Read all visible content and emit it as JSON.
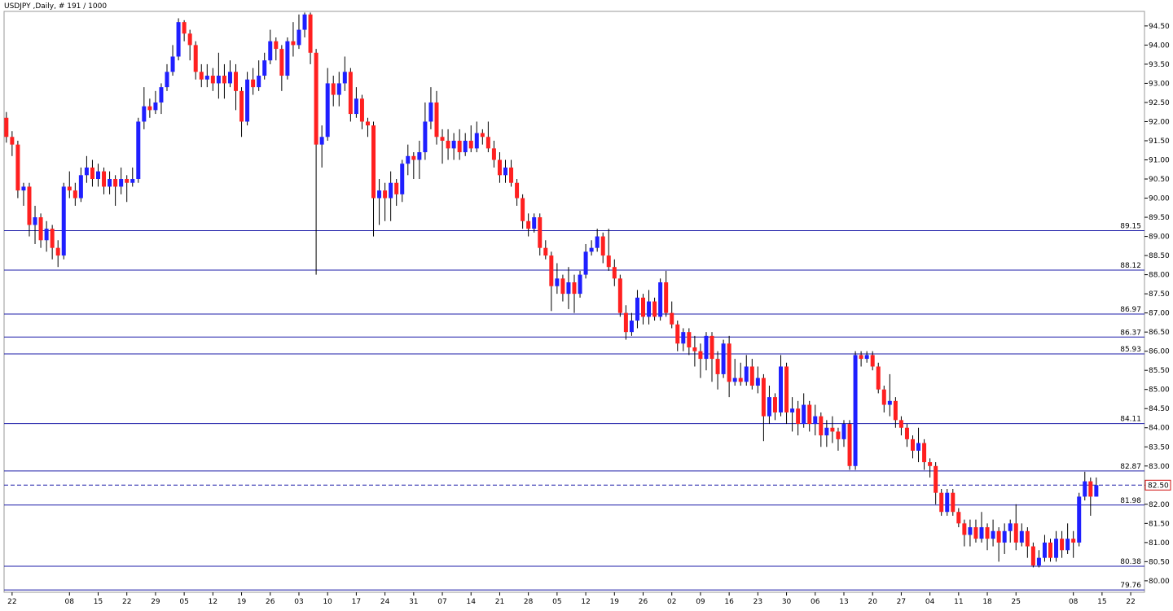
{
  "chart_data": {
    "type": "candlestick",
    "title": "USDJPY ,Daily, # 191 / 1000",
    "up_color": "#1f1fff",
    "down_color": "#ff2020",
    "wick_color": "#000000",
    "level_color": "#1c1ca8",
    "xlim": [
      -0.4,
      198.4
    ],
    "ylim": [
      79.7,
      94.88
    ],
    "xticks": [
      {
        "value": 1,
        "label": "22"
      },
      {
        "value": 11,
        "label": "08"
      },
      {
        "value": 16,
        "label": "15"
      },
      {
        "value": 21,
        "label": "22"
      },
      {
        "value": 26,
        "label": "29"
      },
      {
        "value": 31,
        "label": "05"
      },
      {
        "value": 36,
        "label": "12"
      },
      {
        "value": 41,
        "label": "19"
      },
      {
        "value": 46,
        "label": "26"
      },
      {
        "value": 51,
        "label": "03"
      },
      {
        "value": 56,
        "label": "10"
      },
      {
        "value": 61,
        "label": "17"
      },
      {
        "value": 66,
        "label": "24"
      },
      {
        "value": 71,
        "label": "31"
      },
      {
        "value": 76,
        "label": "07"
      },
      {
        "value": 81,
        "label": "14"
      },
      {
        "value": 86,
        "label": "21"
      },
      {
        "value": 91,
        "label": "28"
      },
      {
        "value": 96,
        "label": "05"
      },
      {
        "value": 101,
        "label": "12"
      },
      {
        "value": 106,
        "label": "19"
      },
      {
        "value": 111,
        "label": "26"
      },
      {
        "value": 116,
        "label": "02"
      },
      {
        "value": 121,
        "label": "09"
      },
      {
        "value": 126,
        "label": "16"
      },
      {
        "value": 131,
        "label": "23"
      },
      {
        "value": 136,
        "label": "30"
      },
      {
        "value": 141,
        "label": "06"
      },
      {
        "value": 146,
        "label": "13"
      },
      {
        "value": 151,
        "label": "20"
      },
      {
        "value": 156,
        "label": "27"
      },
      {
        "value": 161,
        "label": "04"
      },
      {
        "value": 166,
        "label": "11"
      },
      {
        "value": 171,
        "label": "18"
      },
      {
        "value": 176,
        "label": "25"
      },
      {
        "value": 186,
        "label": "08"
      },
      {
        "value": 191,
        "label": "15"
      },
      {
        "value": 196,
        "label": "22"
      }
    ],
    "yticks": [
      {
        "value": 94.5,
        "label": "94.50"
      },
      {
        "value": 94,
        "label": "94.00"
      },
      {
        "value": 93.5,
        "label": "93.50"
      },
      {
        "value": 93,
        "label": "93.00"
      },
      {
        "value": 92.5,
        "label": "92.50"
      },
      {
        "value": 92,
        "label": "92.00"
      },
      {
        "value": 91.5,
        "label": "91.50"
      },
      {
        "value": 91,
        "label": "91.00"
      },
      {
        "value": 90.5,
        "label": "90.50"
      },
      {
        "value": 90,
        "label": "90.00"
      },
      {
        "value": 89.5,
        "label": "89.50"
      },
      {
        "value": 89,
        "label": "89.00"
      },
      {
        "value": 88.5,
        "label": "88.50"
      },
      {
        "value": 88,
        "label": "88.00"
      },
      {
        "value": 87.5,
        "label": "87.50"
      },
      {
        "value": 87,
        "label": "87.00"
      },
      {
        "value": 86.5,
        "label": "86.50"
      },
      {
        "value": 86,
        "label": "86.00"
      },
      {
        "value": 85.5,
        "label": "85.50"
      },
      {
        "value": 85,
        "label": "85.00"
      },
      {
        "value": 84.5,
        "label": "84.50"
      },
      {
        "value": 84,
        "label": "84.00"
      },
      {
        "value": 83.5,
        "label": "83.50"
      },
      {
        "value": 83,
        "label": "83.00"
      },
      {
        "value": 82.5,
        "label": "82.50"
      },
      {
        "value": 82,
        "label": "82.00"
      },
      {
        "value": 81.5,
        "label": "81.50"
      },
      {
        "value": 81,
        "label": "81.00"
      },
      {
        "value": 80.5,
        "label": "80.50"
      },
      {
        "value": 80,
        "label": "80.00"
      }
    ],
    "levels": [
      89.15,
      88.12,
      86.97,
      86.37,
      85.93,
      84.11,
      82.87,
      81.98,
      80.38,
      79.76
    ],
    "current": {
      "value": 82.5,
      "label": "82.50"
    },
    "open": [
      92.1,
      91.6,
      91.4,
      90.2,
      90.3,
      89.3,
      89.5,
      88.9,
      89.2,
      88.7,
      88.5,
      90.3,
      90.2,
      90,
      90.6,
      90.8,
      90.5,
      90.7,
      90.3,
      90.5,
      90.3,
      90.5,
      90.4,
      90.5,
      92,
      92.4,
      92.3,
      92.5,
      92.9,
      93.3,
      93.7,
      94.6,
      94.3,
      94,
      93.3,
      93.1,
      93.2,
      93,
      93.2,
      93,
      93.3,
      92.8,
      92,
      93.1,
      92.9,
      93.2,
      93.6,
      94.1,
      93.9,
      93.2,
      94.1,
      94,
      94.4,
      94.8,
      93.8,
      91.4,
      91.6,
      93,
      92.7,
      93,
      93.3,
      92.2,
      92.6,
      92,
      91.9,
      90,
      90.2,
      90,
      90.4,
      90.1,
      90.9,
      91.1,
      91,
      91.2,
      92,
      92.5,
      91.6,
      91.5,
      91.3,
      91.5,
      91.2,
      91.5,
      91.3,
      91.7,
      91.6,
      91.3,
      91,
      90.6,
      90.8,
      90.4,
      90,
      89.4,
      89.2,
      89.5,
      88.7,
      88.5,
      87.7,
      87.9,
      87.5,
      87.8,
      87.5,
      88,
      88.6,
      88.7,
      89,
      88.5,
      88.2,
      87.9,
      87,
      86.5,
      86.8,
      87.4,
      86.9,
      87.3,
      86.9,
      87.8,
      87,
      86.7,
      86.2,
      86.5,
      86.1,
      86,
      85.8,
      86.4,
      85.8,
      85.4,
      86.2,
      85.2,
      85.3,
      85.2,
      85.6,
      85.1,
      85.3,
      84.3,
      84.8,
      84.4,
      85.6,
      84.4,
      84.5,
      84.1,
      84.6,
      84.1,
      84.3,
      83.8,
      84,
      83.9,
      83.7,
      84.1,
      83,
      85.9,
      85.8,
      85.9,
      85.6,
      85,
      84.6,
      84.7,
      84.2,
      84,
      83.7,
      83.4,
      83.6,
      83.1,
      83,
      82.3,
      81.8,
      82.3,
      81.8,
      81.5,
      81.2,
      81.4,
      81.1,
      81.4,
      81.1,
      81.3,
      81,
      81.3,
      81.5,
      81,
      81.3,
      80.9,
      80.4,
      80.6,
      81,
      80.6,
      81.1,
      80.8,
      81.1,
      81,
      82.2,
      82.6,
      82.2
    ],
    "high": [
      92.25,
      91.75,
      91.5,
      90.4,
      90.4,
      89.8,
      89.6,
      89.4,
      89.3,
      88.9,
      90.4,
      90.7,
      90.4,
      90.8,
      91.1,
      91,
      90.9,
      90.8,
      90.7,
      90.6,
      90.8,
      90.6,
      90.8,
      92.1,
      92.9,
      92.6,
      92.8,
      93,
      93.5,
      94,
      94.7,
      94.65,
      94.4,
      94.1,
      93.5,
      93.5,
      93.4,
      93.8,
      93.5,
      93.6,
      93.5,
      92.9,
      93.3,
      93.4,
      93.6,
      93.8,
      94.4,
      94.2,
      94,
      94.2,
      94.6,
      94.8,
      94.85,
      94.85,
      93.9,
      91.9,
      93.4,
      93.2,
      93.3,
      93.7,
      93.4,
      92.9,
      92.7,
      92.1,
      92,
      90.5,
      90.4,
      90.7,
      90.5,
      91,
      91.4,
      91.2,
      91.5,
      92.5,
      92.9,
      92.8,
      91.8,
      91.8,
      91.7,
      91.8,
      91.7,
      91.9,
      92,
      91.8,
      92,
      91.5,
      91.2,
      91,
      91,
      90.5,
      90.1,
      89.6,
      89.6,
      89.6,
      88.9,
      88.6,
      88.3,
      88,
      88.2,
      88,
      88.1,
      88.8,
      88.9,
      89.2,
      89.1,
      89.2,
      88.4,
      88,
      87.2,
      87,
      87.6,
      87.5,
      87.6,
      87.4,
      87.9,
      88.1,
      87.3,
      86.8,
      86.6,
      86.6,
      86.4,
      86.2,
      86.5,
      86.5,
      86,
      86.3,
      86.4,
      85.8,
      85.7,
      85.9,
      85.8,
      85.6,
      85.4,
      85.1,
      84.9,
      85.9,
      85.7,
      84.8,
      84.7,
      84.9,
      84.7,
      84.6,
      84.4,
      84.2,
      84.3,
      84,
      84.2,
      84.2,
      86,
      86,
      86,
      86,
      85.7,
      85.1,
      85.4,
      84.8,
      84.3,
      84.1,
      83.8,
      84,
      83.7,
      83.2,
      83.1,
      82.4,
      82.4,
      82.4,
      81.9,
      81.6,
      81.6,
      81.6,
      81.8,
      81.5,
      81.6,
      81.4,
      81.5,
      81.6,
      82,
      81.5,
      81.4,
      81,
      80.8,
      81.2,
      81.1,
      81.3,
      81.3,
      81.5,
      81.3,
      82.3,
      82.85,
      82.7,
      82.7
    ],
    "low": [
      91.45,
      91.1,
      90,
      89.8,
      89,
      88.8,
      88.7,
      88.6,
      88.4,
      88.2,
      88.4,
      90,
      89.8,
      89.9,
      90.4,
      90.3,
      90.3,
      90.1,
      90.1,
      89.8,
      90.1,
      89.9,
      90.3,
      90.4,
      91.8,
      92.1,
      92.2,
      92.2,
      92.8,
      93.2,
      93.6,
      94.1,
      93.6,
      93.1,
      92.9,
      92.9,
      92.8,
      92.6,
      92.6,
      92.9,
      92.3,
      91.6,
      91.9,
      92.7,
      92.8,
      93.1,
      93.5,
      93.6,
      92.8,
      93.1,
      93.7,
      93.9,
      94.2,
      93.5,
      88,
      90.8,
      91.5,
      92.4,
      92.4,
      92.8,
      92,
      92.1,
      91.8,
      91.6,
      89,
      89.3,
      89.4,
      89.4,
      89.8,
      89.9,
      90.6,
      90.5,
      90.5,
      91,
      91.8,
      91.4,
      90.9,
      91,
      91,
      91,
      91.1,
      91.2,
      91.2,
      91.4,
      91.2,
      90.8,
      90.4,
      90.4,
      90.3,
      89.8,
      89.2,
      89,
      89.1,
      88.5,
      88.4,
      87.05,
      87.5,
      87.3,
      87.1,
      87,
      87.4,
      87.9,
      88.5,
      88.6,
      88.3,
      88.1,
      87.7,
      86.9,
      86.3,
      86.4,
      86.6,
      86.7,
      86.7,
      86.8,
      86.8,
      86.9,
      86.6,
      86,
      86,
      85.9,
      85.6,
      85.3,
      85.5,
      85.2,
      85,
      85.3,
      84.8,
      85.1,
      85.1,
      85.1,
      85,
      84.9,
      83.65,
      84.1,
      84.2,
      84.3,
      84.1,
      83.9,
      83.8,
      84,
      83.9,
      83.8,
      83.5,
      83.5,
      83.6,
      83.4,
      83.5,
      82.9,
      82.9,
      85.6,
      85.7,
      85.5,
      84.9,
      84.4,
      84.3,
      84,
      83.8,
      83.5,
      83.2,
      83.1,
      82.9,
      82.7,
      82,
      81.7,
      81.7,
      81.7,
      81.4,
      80.9,
      80.9,
      81,
      81,
      80.8,
      80.9,
      80.5,
      80.7,
      81,
      80.8,
      80.9,
      80.6,
      80.35,
      80.35,
      80.5,
      80.5,
      80.5,
      80.6,
      80.7,
      80.6,
      80.9,
      82.1,
      81.7,
      82.2
    ],
    "close": [
      91.6,
      91.4,
      90.2,
      90.3,
      89.3,
      89.5,
      88.9,
      89.2,
      88.7,
      88.5,
      90.3,
      90.2,
      90,
      90.6,
      90.8,
      90.5,
      90.7,
      90.3,
      90.5,
      90.3,
      90.5,
      90.4,
      90.5,
      92,
      92.4,
      92.3,
      92.5,
      92.9,
      93.3,
      93.7,
      94.6,
      94.3,
      94,
      93.3,
      93.1,
      93.2,
      93,
      93.2,
      93,
      93.3,
      92.8,
      92,
      93.1,
      92.9,
      93.2,
      93.6,
      94.1,
      93.9,
      93.2,
      94.1,
      94,
      94.4,
      94.8,
      93.8,
      91.4,
      91.6,
      93,
      92.7,
      93,
      93.3,
      92.2,
      92.6,
      92,
      91.9,
      90,
      90.2,
      90,
      90.4,
      90.1,
      90.9,
      91.1,
      91,
      91.2,
      92,
      92.5,
      91.6,
      91.5,
      91.3,
      91.5,
      91.2,
      91.5,
      91.3,
      91.7,
      91.6,
      91.3,
      91,
      90.6,
      90.8,
      90.4,
      90,
      89.4,
      89.2,
      89.5,
      88.7,
      88.5,
      87.7,
      87.9,
      87.5,
      87.8,
      87.5,
      88,
      88.6,
      88.7,
      89,
      88.5,
      88.2,
      87.9,
      87,
      86.5,
      86.8,
      87.4,
      86.9,
      87.3,
      86.9,
      87.8,
      87,
      86.7,
      86.2,
      86.5,
      86.1,
      86,
      85.8,
      86.4,
      85.8,
      85.4,
      86.2,
      85.2,
      85.3,
      85.2,
      85.6,
      85.1,
      85.3,
      84.3,
      84.8,
      84.4,
      85.6,
      84.4,
      84.5,
      84.1,
      84.6,
      84.1,
      84.3,
      83.8,
      84,
      83.9,
      83.7,
      84.1,
      83,
      85.9,
      85.8,
      85.9,
      85.6,
      85,
      84.6,
      84.7,
      84.2,
      84,
      83.7,
      83.4,
      83.6,
      83.1,
      83,
      82.3,
      81.8,
      82.3,
      81.8,
      81.5,
      81.2,
      81.4,
      81.1,
      81.4,
      81.1,
      81.3,
      81,
      81.3,
      81.5,
      81,
      81.3,
      80.9,
      80.4,
      80.6,
      81,
      80.6,
      81.1,
      80.8,
      81.1,
      81,
      82.2,
      82.6,
      82.2,
      82.5
    ]
  }
}
